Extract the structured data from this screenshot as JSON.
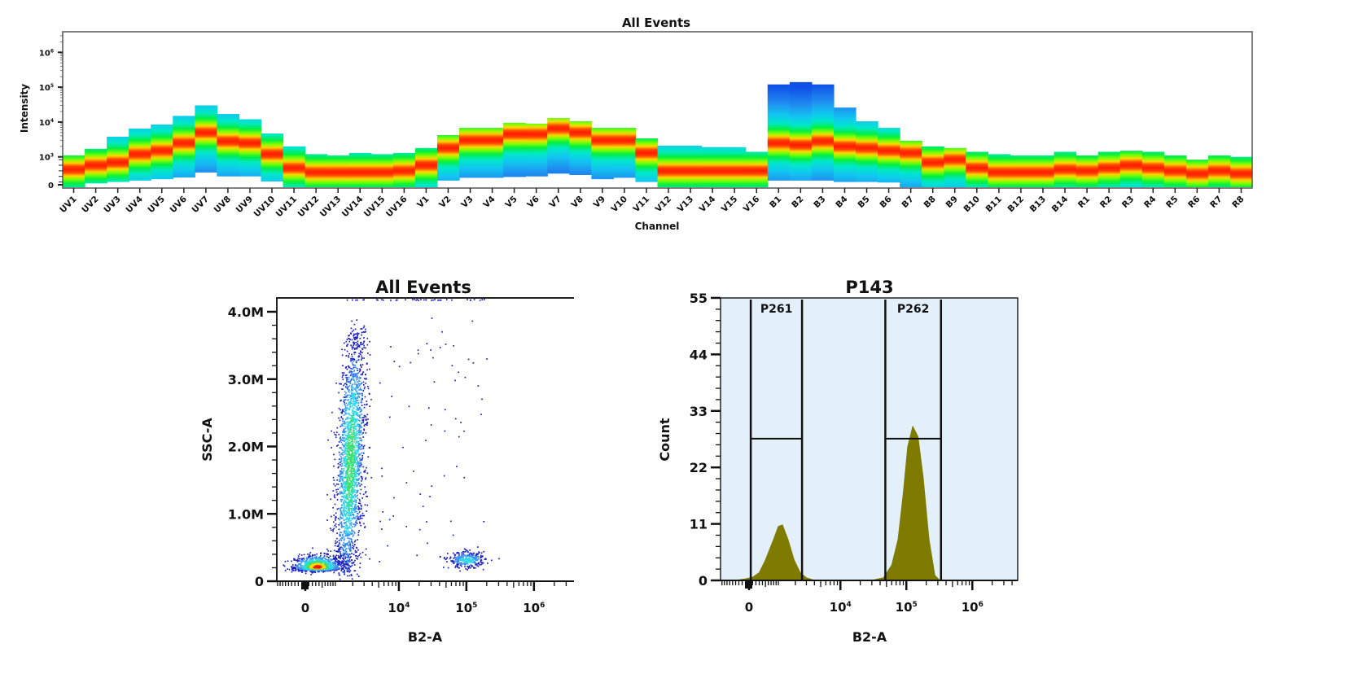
{
  "chart_data": [
    {
      "type": "heatmap",
      "title": "All Events",
      "xlabel": "Channel",
      "ylabel": "Intensity",
      "yscale": "log",
      "ylim": [
        0,
        4000000
      ],
      "y_ticks": [
        "0",
        "10^3",
        "10^4",
        "10^5",
        "10^6"
      ],
      "grid": false,
      "colormap": [
        "#1050e8",
        "#10c8f0",
        "#00ee40",
        "#ffd800",
        "#ff1a00"
      ],
      "channels": [
        {
          "label": "UV1",
          "min": 0,
          "peak": 550,
          "max": 1100
        },
        {
          "label": "UV2",
          "min": 50,
          "peak": 700,
          "max": 1700
        },
        {
          "label": "UV3",
          "min": 100,
          "peak": 800,
          "max": 3800
        },
        {
          "label": "UV4",
          "min": 150,
          "peak": 1200,
          "max": 6500
        },
        {
          "label": "UV5",
          "min": 200,
          "peak": 1500,
          "max": 8500
        },
        {
          "label": "UV6",
          "min": 260,
          "peak": 2500,
          "max": 15000
        },
        {
          "label": "UV7",
          "min": 440,
          "peak": 5000,
          "max": 30000
        },
        {
          "label": "UV8",
          "min": 300,
          "peak": 2800,
          "max": 17000
        },
        {
          "label": "UV9",
          "min": 300,
          "peak": 2500,
          "max": 12000
        },
        {
          "label": "UV10",
          "min": 120,
          "peak": 1200,
          "max": 4700
        },
        {
          "label": "UV11",
          "min": 0,
          "peak": 600,
          "max": 2000
        },
        {
          "label": "UV12",
          "min": 0,
          "peak": 450,
          "max": 1200
        },
        {
          "label": "UV13",
          "min": 0,
          "peak": 450,
          "max": 1100
        },
        {
          "label": "UV14",
          "min": 0,
          "peak": 450,
          "max": 1300
        },
        {
          "label": "UV15",
          "min": 0,
          "peak": 450,
          "max": 1200
        },
        {
          "label": "UV16",
          "min": 0,
          "peak": 500,
          "max": 1300
        },
        {
          "label": "V1",
          "min": 0,
          "peak": 700,
          "max": 1800
        },
        {
          "label": "V2",
          "min": 150,
          "peak": 1800,
          "max": 4200
        },
        {
          "label": "V3",
          "min": 250,
          "peak": 3000,
          "max": 6800
        },
        {
          "label": "V4",
          "min": 250,
          "peak": 3000,
          "max": 6800
        },
        {
          "label": "V5",
          "min": 280,
          "peak": 4500,
          "max": 9500
        },
        {
          "label": "V6",
          "min": 300,
          "peak": 4500,
          "max": 9000
        },
        {
          "label": "V7",
          "min": 400,
          "peak": 6500,
          "max": 13000
        },
        {
          "label": "V8",
          "min": 350,
          "peak": 5000,
          "max": 10500
        },
        {
          "label": "V9",
          "min": 200,
          "peak": 3000,
          "max": 6800
        },
        {
          "label": "V10",
          "min": 250,
          "peak": 3000,
          "max": 6800
        },
        {
          "label": "V11",
          "min": 100,
          "peak": 1300,
          "max": 3400
        },
        {
          "label": "V12",
          "min": 0,
          "peak": 500,
          "max": 2100
        },
        {
          "label": "V13",
          "min": 0,
          "peak": 500,
          "max": 2100
        },
        {
          "label": "V14",
          "min": 0,
          "peak": 500,
          "max": 1900
        },
        {
          "label": "V15",
          "min": 0,
          "peak": 500,
          "max": 1900
        },
        {
          "label": "V16",
          "min": 0,
          "peak": 500,
          "max": 1400
        },
        {
          "label": "B1",
          "min": 150,
          "peak": 2500,
          "max": 120000
        },
        {
          "label": "B2",
          "min": 150,
          "peak": 2200,
          "max": 140000
        },
        {
          "label": "B3",
          "min": 150,
          "peak": 2800,
          "max": 120000
        },
        {
          "label": "B4",
          "min": 100,
          "peak": 2000,
          "max": 26000
        },
        {
          "label": "B5",
          "min": 100,
          "peak": 1800,
          "max": 10500
        },
        {
          "label": "B6",
          "min": 80,
          "peak": 1500,
          "max": 6800
        },
        {
          "label": "B7",
          "min": 0,
          "peak": 1300,
          "max": 2900
        },
        {
          "label": "B8",
          "min": 0,
          "peak": 800,
          "max": 2000
        },
        {
          "label": "B9",
          "min": 0,
          "peak": 900,
          "max": 1800
        },
        {
          "label": "B10",
          "min": 0,
          "peak": 600,
          "max": 1400
        },
        {
          "label": "B11",
          "min": 0,
          "peak": 450,
          "max": 1200
        },
        {
          "label": "B12",
          "min": 0,
          "peak": 450,
          "max": 1100
        },
        {
          "label": "B13",
          "min": 0,
          "peak": 450,
          "max": 1100
        },
        {
          "label": "B14",
          "min": 0,
          "peak": 550,
          "max": 1400
        },
        {
          "label": "R1",
          "min": 0,
          "peak": 500,
          "max": 1100
        },
        {
          "label": "R2",
          "min": 0,
          "peak": 600,
          "max": 1400
        },
        {
          "label": "R3",
          "min": 0,
          "peak": 700,
          "max": 1500
        },
        {
          "label": "R4",
          "min": 0,
          "peak": 600,
          "max": 1400
        },
        {
          "label": "R5",
          "min": 0,
          "peak": 500,
          "max": 1100
        },
        {
          "label": "R6",
          "min": 0,
          "peak": 400,
          "max": 900
        },
        {
          "label": "R7",
          "min": 0,
          "peak": 500,
          "max": 1100
        },
        {
          "label": "R8",
          "min": 0,
          "peak": 400,
          "max": 1000
        }
      ]
    },
    {
      "type": "scatter",
      "title": "All Events",
      "xlabel": "B2-A",
      "ylabel": "SSC-A",
      "xscale": "biexponential",
      "xlim": [
        -930,
        3900000
      ],
      "ylim": [
        0,
        4200000
      ],
      "x_ticks": [
        "0",
        "10^4",
        "10^5",
        "10^6"
      ],
      "y_ticks": [
        "0",
        "1.0M",
        "2.0M",
        "3.0M",
        "4.0M"
      ],
      "grid": false,
      "density_colors": [
        "#1c20c0",
        "#3a90f0",
        "#30d8e8",
        "#3ce070",
        "#ffd800",
        "#ff1a00"
      ],
      "populations": [
        {
          "x_range": [
            -500,
            1500
          ],
          "y_range": [
            100000,
            450000
          ],
          "count": 1100
        },
        {
          "x_range": [
            800,
            4000
          ],
          "y_range": [
            300000,
            3600000
          ],
          "count": 2300
        },
        {
          "x_range": [
            40000,
            250000
          ],
          "y_range": [
            150000,
            500000
          ],
          "count": 320
        },
        {
          "x_range": [
            5000,
            200000
          ],
          "y_range": [
            200000,
            4000000
          ],
          "count": 70
        },
        {
          "x_range": [
            1500,
            200000
          ],
          "y_range": [
            4180000,
            4200000
          ],
          "count": 60
        }
      ]
    },
    {
      "type": "area",
      "title": "P143",
      "xlabel": "B2-A",
      "ylabel": "Count",
      "xscale": "biexponential",
      "xlim": [
        -930,
        3900000
      ],
      "ylim": [
        0,
        55
      ],
      "x_ticks": [
        "0",
        "10^4",
        "10^5",
        "10^6"
      ],
      "y_ticks": [
        "0",
        "11",
        "22",
        "33",
        "44",
        "55"
      ],
      "fill_color": "#7f7a00",
      "background_color": "#e3f0fa",
      "series": [
        {
          "x": [
            -400,
            -100,
            100,
            300,
            500,
            800,
            1000,
            1200,
            1500,
            1900,
            2400,
            3000,
            4000
          ],
          "y": [
            0,
            0.3,
            0.6,
            1.5,
            4,
            8,
            10.5,
            10.8,
            8,
            4,
            1.5,
            0.5,
            0
          ]
        },
        {
          "x": [
            30000,
            45000,
            60000,
            75000,
            90000,
            105000,
            125000,
            150000,
            180000,
            220000,
            270000,
            320000
          ],
          "y": [
            0,
            0.5,
            3,
            8,
            17,
            26,
            30,
            28,
            20,
            8,
            1,
            0
          ]
        }
      ],
      "gates": [
        {
          "label": "P261",
          "x_range": [
            50,
            2560
          ],
          "level": 27.6
        },
        {
          "label": "P262",
          "x_range": [
            48000,
            335000
          ],
          "level": 27.6
        }
      ]
    }
  ]
}
